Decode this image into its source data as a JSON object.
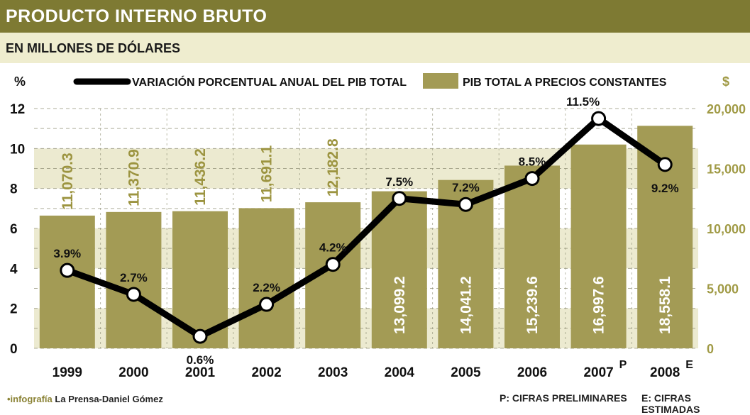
{
  "header": {
    "title": "PRODUCTO INTERNO BRUTO",
    "subtitle": "EN MILLONES DE DÓLARES"
  },
  "footer": {
    "credit_tag": "•infografía",
    "credit_name": "La Prensa-Daniel Gómez",
    "note_p": "P: CIFRAS PRELIMINARES",
    "note_e": "E: CIFRAS ESTIMADAS"
  },
  "colors": {
    "bar": "#a39b55",
    "band": "#ecead0",
    "title_bg": "#7e7a33",
    "line": "#000000",
    "right_axis": "#a09a45"
  },
  "chart_data": {
    "type": "bar",
    "categories": [
      "1999",
      "2000",
      "2001",
      "2002",
      "2003",
      "2004",
      "2005",
      "2006",
      "2007",
      "2008"
    ],
    "category_superscripts": [
      "",
      "",
      "",
      "",
      "",
      "",
      "",
      "",
      "P",
      "E"
    ],
    "left_axis_unit": "%",
    "right_axis_unit": "$",
    "left_ylim": [
      0,
      12
    ],
    "left_ticks": [
      "0",
      "2",
      "4",
      "6",
      "8",
      "10",
      "12"
    ],
    "right_ylim": [
      0,
      20000
    ],
    "right_ticks": [
      "0",
      "5,000",
      "10,000",
      "15,000",
      "20,000"
    ],
    "series": [
      {
        "name": "PIB TOTAL A PRECIOS CONSTANTES",
        "kind": "bar",
        "axis": "right",
        "values": [
          11070.3,
          11370.9,
          11436.2,
          11691.1,
          12182.8,
          13099.2,
          14041.2,
          15239.6,
          16997.6,
          18558.1
        ],
        "labels": [
          "11,070.3",
          "11,370.9",
          "11,436.2",
          "11,691.1",
          "12,182.8",
          "13,099.2",
          "14,041.2",
          "15,239.6",
          "16,997.6",
          "18,558.1"
        ]
      },
      {
        "name": "VARIACIÓN PORCENTUAL ANUAL DEL PIB TOTAL",
        "kind": "line",
        "axis": "left",
        "values": [
          3.9,
          2.7,
          0.6,
          2.2,
          4.2,
          7.5,
          7.2,
          8.5,
          11.5,
          9.2
        ],
        "labels": [
          "3.9%",
          "2.7%",
          "0.6%",
          "2.2%",
          "4.2%",
          "7.5%",
          "7.2%",
          "8.5%",
          "11.5%",
          "9.2%"
        ]
      }
    ],
    "legend_placement": "top",
    "grid": true
  }
}
